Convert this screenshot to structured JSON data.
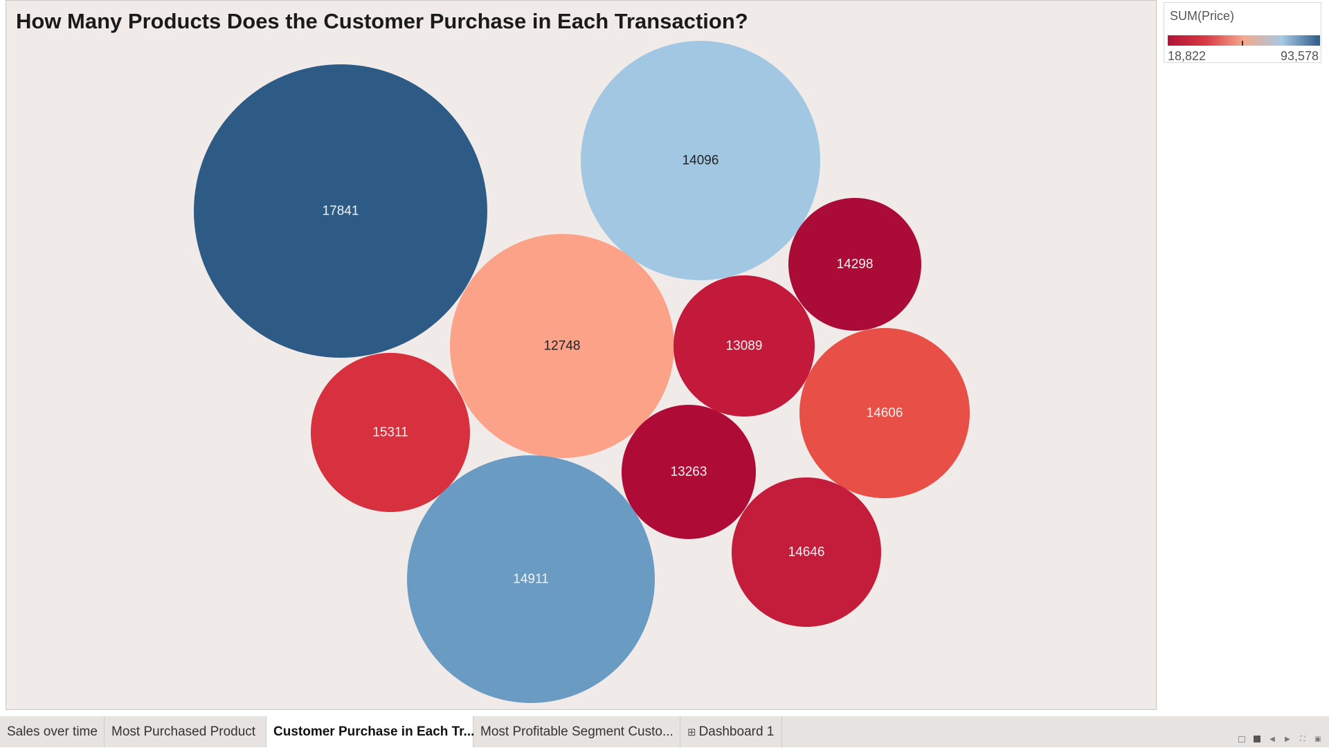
{
  "chart_data": {
    "type": "bubble",
    "title": "How Many Products Does the Customer Purchase in Each Transaction?",
    "color_legend": {
      "title": "SUM(Price)",
      "min_label": "18,822",
      "max_label": "93,578",
      "colors": [
        "#b01434",
        "#d83a45",
        "#f4a98e",
        "#a6c8e3",
        "#2e5b88"
      ]
    },
    "bubbles": [
      {
        "label": "17841",
        "color": "#2e5b86"
      },
      {
        "label": "14096",
        "color": "#a2c7e3"
      },
      {
        "label": "12748",
        "color": "#fca289"
      },
      {
        "label": "14298",
        "color": "#ab0c37"
      },
      {
        "label": "13089",
        "color": "#c3193a"
      },
      {
        "label": "14606",
        "color": "#e84f47"
      },
      {
        "label": "15311",
        "color": "#d7303f"
      },
      {
        "label": "13263",
        "color": "#ae0c36"
      },
      {
        "label": "14911",
        "color": "#6a9bc3"
      },
      {
        "label": "14646",
        "color": "#c41d3c"
      }
    ]
  },
  "tabs": [
    {
      "label": "Sales over time",
      "active": false
    },
    {
      "label": "Most Purchased Product",
      "active": false
    },
    {
      "label": "Customer Purchase in Each Tr...",
      "active": true
    },
    {
      "label": "Most Profitable Segment Custo...",
      "active": false
    },
    {
      "label": "Dashboard 1",
      "active": false,
      "icon": "grid-icon"
    }
  ],
  "nav_icons": [
    "sheet-sorter-icon",
    "filmstrip-icon",
    "previous-sheet-icon",
    "next-sheet-icon",
    "fullscreen-icon",
    "presentation-icon"
  ]
}
